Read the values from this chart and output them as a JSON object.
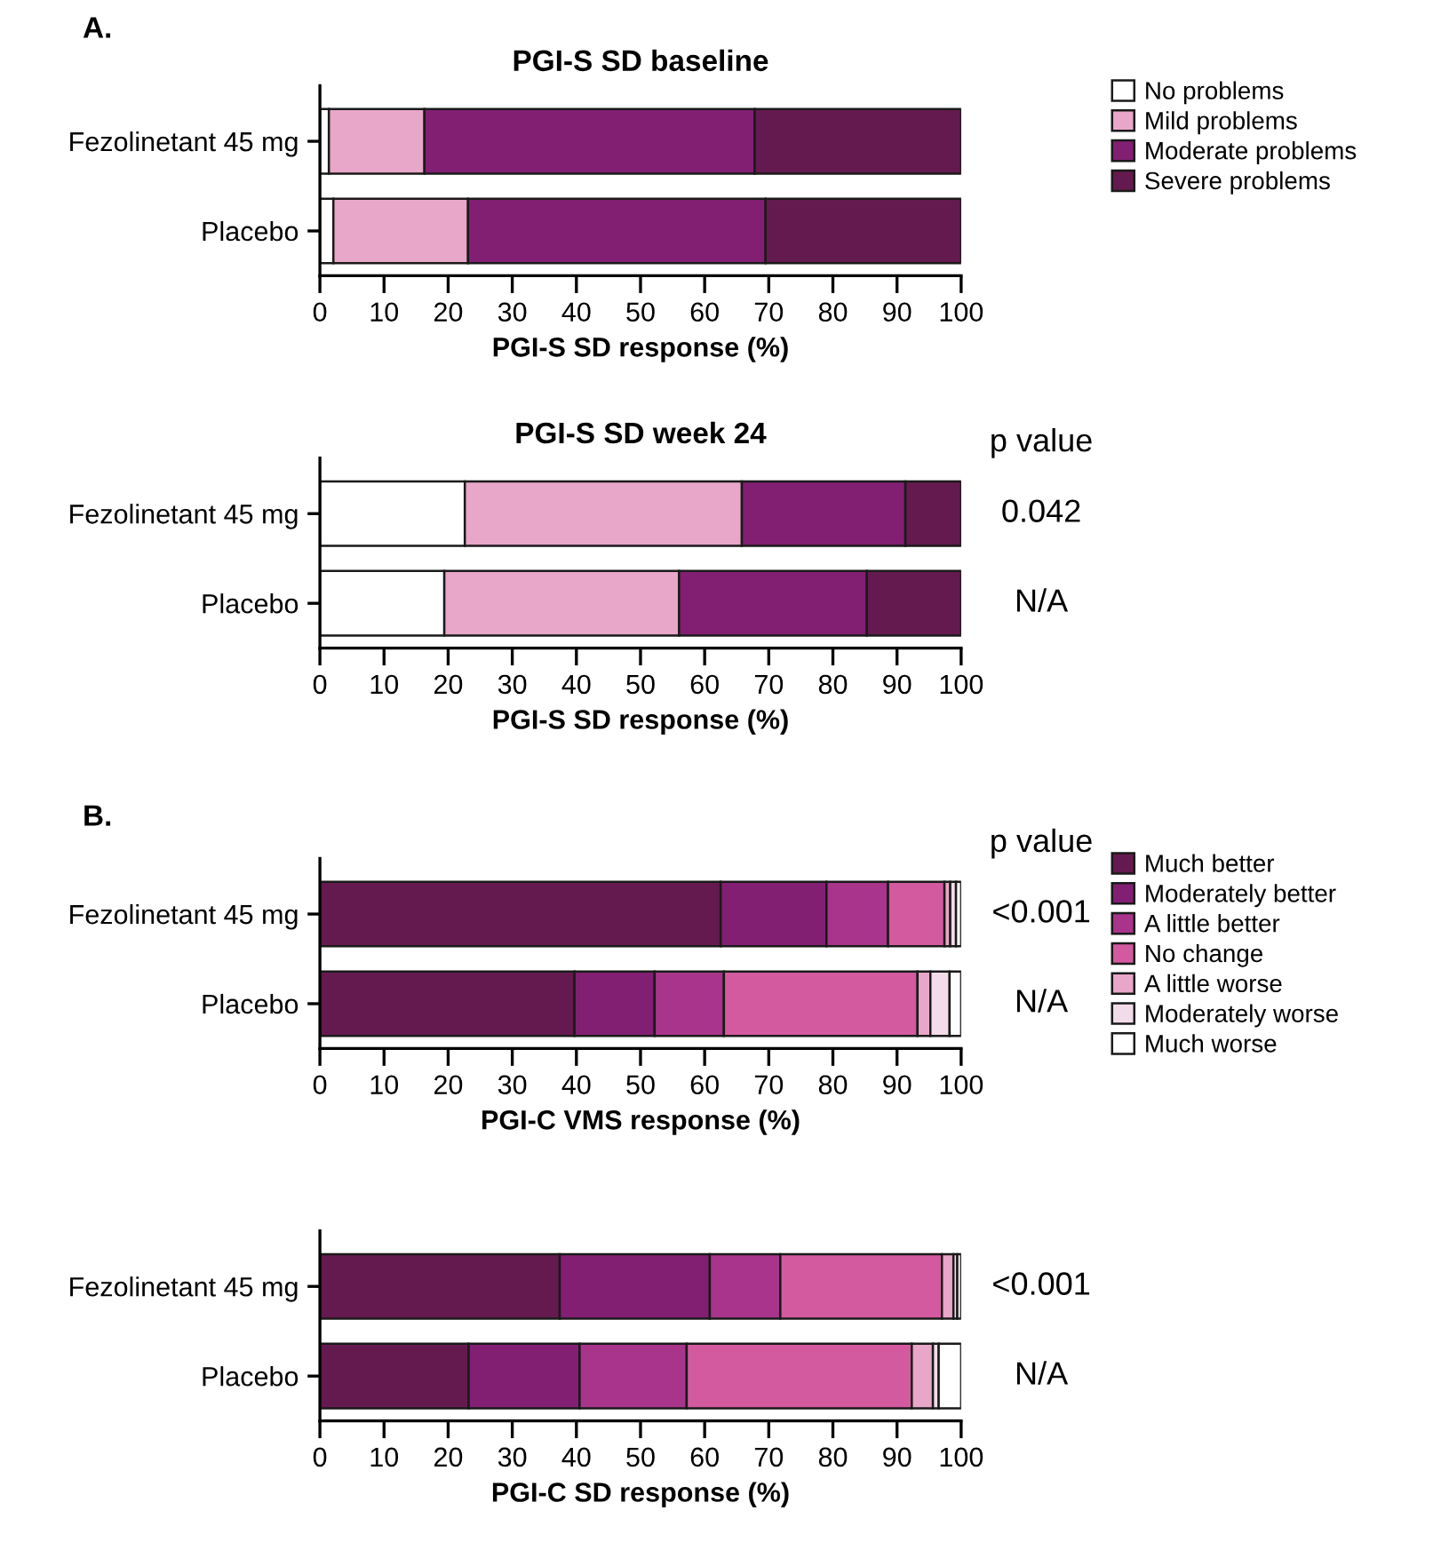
{
  "chart_data": [
    {
      "type": "bar",
      "orientation": "horizontal",
      "stacked": true,
      "title": "PGI-S SD baseline",
      "xlabel": "PGI-S SD response (%)",
      "categories": [
        "Fezolinetant 45 mg",
        "Placebo"
      ],
      "xlim": [
        0,
        100
      ],
      "xticks": [
        0,
        10,
        20,
        30,
        40,
        50,
        60,
        70,
        80,
        90,
        100
      ],
      "legend": "right",
      "grid": false,
      "series": [
        {
          "name": "No problems",
          "color": "#ffffff",
          "values": [
            1.4,
            2.1
          ]
        },
        {
          "name": "Mild problems",
          "color": "#e8a6c9",
          "values": [
            14.9,
            21.0
          ]
        },
        {
          "name": "Moderate problems",
          "color": "#821f73",
          "values": [
            51.5,
            46.4
          ]
        },
        {
          "name": "Severe problems",
          "color": "#651a4f",
          "values": [
            32.2,
            30.5
          ]
        }
      ],
      "annotations": [
        "A."
      ]
    },
    {
      "type": "bar",
      "orientation": "horizontal",
      "stacked": true,
      "title": "PGI-S SD week 24",
      "xlabel": "PGI-S SD response (%)",
      "categories": [
        "Fezolinetant 45 mg",
        "Placebo"
      ],
      "xlim": [
        0,
        100
      ],
      "xticks": [
        0,
        10,
        20,
        30,
        40,
        50,
        60,
        70,
        80,
        90,
        100
      ],
      "grid": false,
      "series": [
        {
          "color": "#ffffff",
          "values": [
            22.6,
            19.4
          ]
        },
        {
          "color": "#e8a6c9",
          "values": [
            43.2,
            36.6
          ]
        },
        {
          "color": "#821f73",
          "values": [
            25.5,
            29.3
          ]
        },
        {
          "color": "#651a4f",
          "values": [
            8.7,
            14.7
          ]
        }
      ],
      "annotations": [
        "p value",
        "0.042",
        "N/A"
      ]
    },
    {
      "type": "bar",
      "orientation": "horizontal",
      "stacked": true,
      "xlabel": "PGI-C VMS response (%)",
      "categories": [
        "Fezolinetant 45 mg",
        "Placebo"
      ],
      "xlim": [
        0,
        100
      ],
      "xticks": [
        0,
        10,
        20,
        30,
        40,
        50,
        60,
        70,
        80,
        90,
        100
      ],
      "legend": "right",
      "grid": false,
      "series": [
        {
          "name": "Much better",
          "color": "#651a4f",
          "values": [
            62.5,
            39.7
          ]
        },
        {
          "name": "Moderately better",
          "color": "#821f73",
          "values": [
            16.5,
            12.5
          ]
        },
        {
          "name": "A little better",
          "color": "#a8348b",
          "values": [
            9.6,
            10.8
          ]
        },
        {
          "name": "No change",
          "color": "#d35a9f",
          "values": [
            8.8,
            30.2
          ]
        },
        {
          "name": "A little worse",
          "color": "#e8a6c9",
          "values": [
            0.9,
            2.0
          ]
        },
        {
          "name": "Moderately worse",
          "color": "#f3dcea",
          "values": [
            0.9,
            3.0
          ]
        },
        {
          "name": "Much worse",
          "color": "#ffffff",
          "values": [
            0.8,
            1.8
          ]
        }
      ],
      "annotations": [
        "B.",
        "p value",
        "<0.001",
        "N/A"
      ]
    },
    {
      "type": "bar",
      "orientation": "horizontal",
      "stacked": true,
      "xlabel": "PGI-C SD response (%)",
      "categories": [
        "Fezolinetant 45 mg",
        "Placebo"
      ],
      "xlim": [
        0,
        100
      ],
      "xticks": [
        0,
        10,
        20,
        30,
        40,
        50,
        60,
        70,
        80,
        90,
        100
      ],
      "grid": false,
      "series": [
        {
          "color": "#651a4f",
          "values": [
            37.4,
            23.2
          ]
        },
        {
          "color": "#821f73",
          "values": [
            23.4,
            17.3
          ]
        },
        {
          "color": "#a8348b",
          "values": [
            11.0,
            16.7
          ]
        },
        {
          "color": "#d35a9f",
          "values": [
            25.2,
            35.1
          ]
        },
        {
          "color": "#e8a6c9",
          "values": [
            1.8,
            3.3
          ]
        },
        {
          "color": "#f3dcea",
          "values": [
            0.6,
            0.9
          ]
        },
        {
          "color": "#ffffff",
          "values": [
            0.6,
            3.5
          ]
        }
      ],
      "annotations": [
        "<0.001",
        "N/A"
      ]
    }
  ]
}
